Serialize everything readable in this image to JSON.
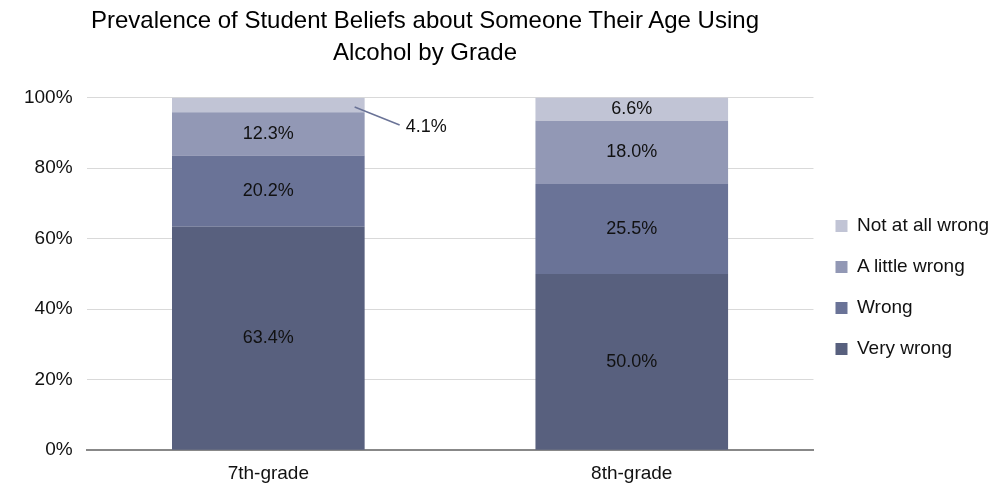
{
  "chart_data": {
    "type": "bar",
    "title": "Prevalence of Student Beliefs about Someone Their Age Using Alcohol by Grade",
    "categories": [
      "7th-grade",
      "8th-grade"
    ],
    "stacked": true,
    "series": [
      {
        "name": "Very wrong",
        "color": "#58607e",
        "values": [
          63.4,
          50.0
        ],
        "value_labels": [
          "63.4%",
          "50.0%"
        ]
      },
      {
        "name": "Wrong",
        "color": "#6a7397",
        "values": [
          20.2,
          25.5
        ],
        "value_labels": [
          "20.2%",
          "25.5%"
        ]
      },
      {
        "name": "A little wrong",
        "color": "#9298b5",
        "values": [
          12.3,
          18.0
        ],
        "value_labels": [
          "12.3%",
          "18.0%"
        ]
      },
      {
        "name": "Not at all wrong",
        "color": "#c1c4d5",
        "values": [
          4.1,
          6.6
        ],
        "value_labels": [
          "4.1%",
          "6.6%"
        ]
      }
    ],
    "ylim": [
      0,
      100.1
    ],
    "yticks": [
      {
        "value": 0,
        "label": "0%"
      },
      {
        "value": 20,
        "label": "20%"
      },
      {
        "value": 40,
        "label": "40%"
      },
      {
        "value": 60,
        "label": "60%"
      },
      {
        "value": 80,
        "label": "80%"
      },
      {
        "value": 100,
        "label": "100%"
      }
    ],
    "grid": "y",
    "legend": "right"
  }
}
